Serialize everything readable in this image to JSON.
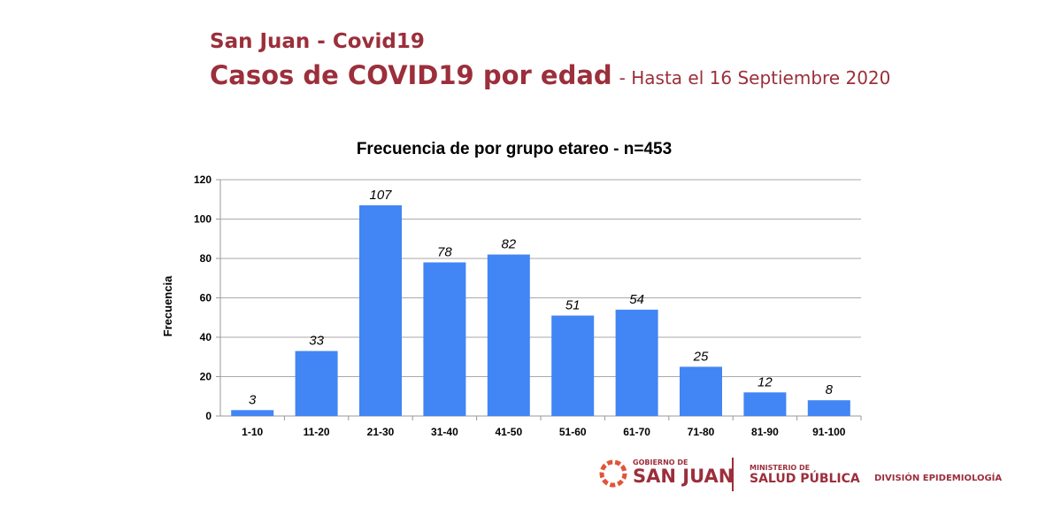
{
  "header": {
    "line1": "San Juan - Covid19",
    "line2": "Casos de COVID19 por edad",
    "line2_sub": "- Hasta el 16 Septiembre 2020"
  },
  "chart_data": {
    "type": "bar",
    "title": "Frecuencia de por grupo etareo - n=453",
    "xlabel": "",
    "ylabel": "Frecuencia",
    "categories": [
      "1-10",
      "11-20",
      "21-30",
      "31-40",
      "41-50",
      "51-60",
      "61-70",
      "71-80",
      "81-90",
      "91-100"
    ],
    "values": [
      3,
      33,
      107,
      78,
      82,
      51,
      54,
      25,
      12,
      8
    ],
    "ylim": [
      0,
      120
    ],
    "yticks": [
      0,
      20,
      40,
      60,
      80,
      100,
      120
    ],
    "grid": true,
    "bar_color": "#4285f4"
  },
  "footer": {
    "gov_small": "GOBIERNO DE",
    "gov_big": "SAN JUAN",
    "min_small": "MINISTERIO DE",
    "min_big": "SALUD PÚBLICA",
    "division": "DIVISIÓN EPIDEMIOLOGÍA"
  },
  "colors": {
    "brand": "#9b2f3b"
  }
}
